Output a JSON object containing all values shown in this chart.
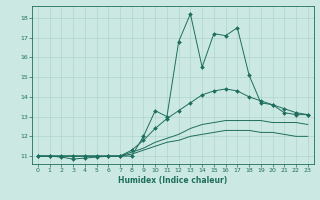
{
  "xlabel": "Humidex (Indice chaleur)",
  "ylabel": "",
  "bg_color": "#cce8e2",
  "grid_color": "#afd4cc",
  "line_color": "#1e6e5e",
  "xlim": [
    -0.5,
    23.5
  ],
  "ylim": [
    10.6,
    18.6
  ],
  "xticks": [
    0,
    1,
    2,
    3,
    4,
    5,
    6,
    7,
    8,
    9,
    10,
    11,
    12,
    13,
    14,
    15,
    16,
    17,
    18,
    19,
    20,
    21,
    22,
    23
  ],
  "yticks": [
    11,
    12,
    13,
    14,
    15,
    16,
    17,
    18
  ],
  "line1_x": [
    0,
    1,
    2,
    3,
    4,
    5,
    6,
    7,
    8,
    9,
    10,
    11,
    12,
    13,
    14,
    15,
    16,
    17,
    18,
    19,
    20,
    21,
    22,
    23
  ],
  "line1_y": [
    11.0,
    11.0,
    10.95,
    10.85,
    10.9,
    10.95,
    11.0,
    11.0,
    11.0,
    12.0,
    13.3,
    13.0,
    16.8,
    18.2,
    15.5,
    17.2,
    17.1,
    17.5,
    15.1,
    13.7,
    13.6,
    13.2,
    13.1,
    13.1
  ],
  "line2_x": [
    0,
    1,
    2,
    3,
    4,
    5,
    6,
    7,
    8,
    9,
    10,
    11,
    12,
    13,
    14,
    15,
    16,
    17,
    18,
    19,
    20,
    21,
    22,
    23
  ],
  "line2_y": [
    11.0,
    11.0,
    11.0,
    11.0,
    11.0,
    11.0,
    11.0,
    11.0,
    11.3,
    11.8,
    12.4,
    12.9,
    13.3,
    13.7,
    14.1,
    14.3,
    14.4,
    14.3,
    14.0,
    13.8,
    13.6,
    13.4,
    13.2,
    13.1
  ],
  "line3_x": [
    0,
    1,
    2,
    3,
    4,
    5,
    6,
    7,
    8,
    9,
    10,
    11,
    12,
    13,
    14,
    15,
    16,
    17,
    18,
    19,
    20,
    21,
    22,
    23
  ],
  "line3_y": [
    11.0,
    11.0,
    11.0,
    11.0,
    11.0,
    11.0,
    11.0,
    11.0,
    11.2,
    11.4,
    11.7,
    11.9,
    12.1,
    12.4,
    12.6,
    12.7,
    12.8,
    12.8,
    12.8,
    12.8,
    12.7,
    12.7,
    12.7,
    12.6
  ],
  "line4_x": [
    0,
    1,
    2,
    3,
    4,
    5,
    6,
    7,
    8,
    9,
    10,
    11,
    12,
    13,
    14,
    15,
    16,
    17,
    18,
    19,
    20,
    21,
    22,
    23
  ],
  "line4_y": [
    11.0,
    11.0,
    11.0,
    11.0,
    11.0,
    11.0,
    11.0,
    11.0,
    11.1,
    11.3,
    11.5,
    11.7,
    11.8,
    12.0,
    12.1,
    12.2,
    12.3,
    12.3,
    12.3,
    12.2,
    12.2,
    12.1,
    12.0,
    12.0
  ]
}
